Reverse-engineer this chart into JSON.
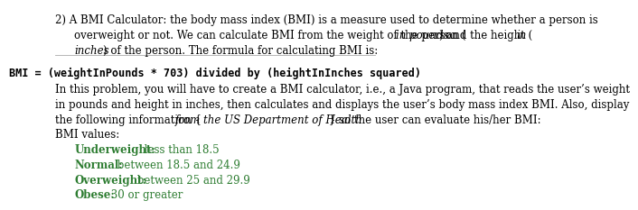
{
  "bg_color": "#ffffff",
  "text_color": "#000000",
  "green_color": "#2e7d32",
  "line_color": "#aaaaaa",
  "para1": "2) A BMI Calculator: the body mass index (BMI) is a measure used to determine whether a person is\n    overweight or not. We can calculate BMI from the weight of the person (",
  "para1_italic1": "in pounds",
  "para1_mid": ") and the height (",
  "para1_italic2": "in\n    inches",
  "para1_end": ") of the person. The formula for calculating BMI is:",
  "formula": "    BMI = (weightInPounds * 703) divided by (heightInInches squared)",
  "para2_line1": "In this problem, you will have to create a BMI calculator, i.e., a Java program, that reads the user’s weight",
  "para2_line2": "in pounds and height in inches, then calculates and displays the user’s body mass index BMI. Also, display",
  "para2_line3": "the following information {",
  "para2_italic": "from the US Department of Health",
  "para2_line3_end": "} so the user can evaluate his/her BMI:",
  "para2_line4": "BMI values:",
  "bmi_labels": [
    "Underweight:",
    "Normal:",
    "Overweight:",
    "Obese:"
  ],
  "bmi_values": [
    "less than 18.5",
    "between 18.5 and 24.9",
    "between 25 and 29.9",
    "30 or greater"
  ],
  "indent": 0.08,
  "fontsize": 8.5,
  "formula_fontsize": 8.5
}
